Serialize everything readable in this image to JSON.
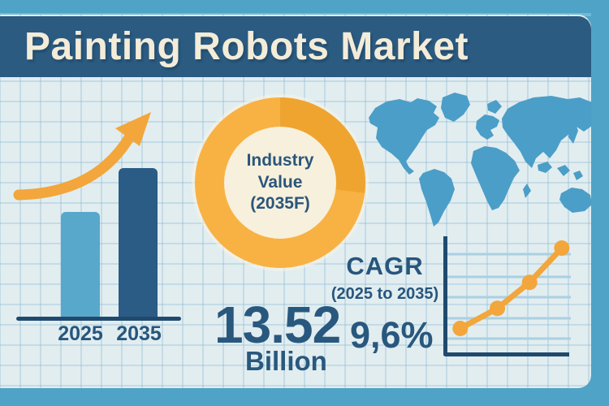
{
  "header": {
    "title": "Painting Robots Market"
  },
  "stats": {
    "value_number": "13.52",
    "value_unit": "Billion",
    "cagr_label": "CAGR",
    "cagr_range": "(2025 to 2035)",
    "cagr_value": "9,6%"
  },
  "chart_data": [
    {
      "type": "bar",
      "name": "market-growth-bars",
      "categories": [
        "2025",
        "2035"
      ],
      "values": [
        129,
        183
      ],
      "value_note": "relative bar heights in px; no numeric axis shown",
      "colors": [
        "#58A8CB",
        "#2A5C85"
      ],
      "axis_color": "#1F4A6E"
    },
    {
      "type": "pie",
      "variant": "donut",
      "name": "industry-value-donut",
      "center_label": [
        "Industry",
        "Value",
        "(2035F)"
      ],
      "slices": [
        {
          "name": "highlight-segment",
          "degrees": 97,
          "color": "#EFA42F"
        },
        {
          "name": "remainder-segment",
          "degrees": 263,
          "color": "#F8B243"
        }
      ]
    },
    {
      "type": "line",
      "name": "growth-trend-line",
      "x_normalized": [
        0.12,
        0.42,
        0.68,
        0.94
      ],
      "y_normalized": [
        0.22,
        0.39,
        0.61,
        0.9
      ],
      "value_note": "4 rising points, axes unlabeled",
      "color": "#F2A63B",
      "gridlines": 5,
      "legend": "none"
    }
  ],
  "colors": {
    "frame": "#4FA3C6",
    "header_bg": "#2B5B81",
    "panel_bg": "#E2EDF0",
    "grid_line": "#BFDCE6",
    "navy_text": "#27567D",
    "cream_text": "#F3ECD9",
    "orange": "#F2A63B",
    "map_blue": "#4B9EC7",
    "donut_center": "#F7F0DC"
  }
}
